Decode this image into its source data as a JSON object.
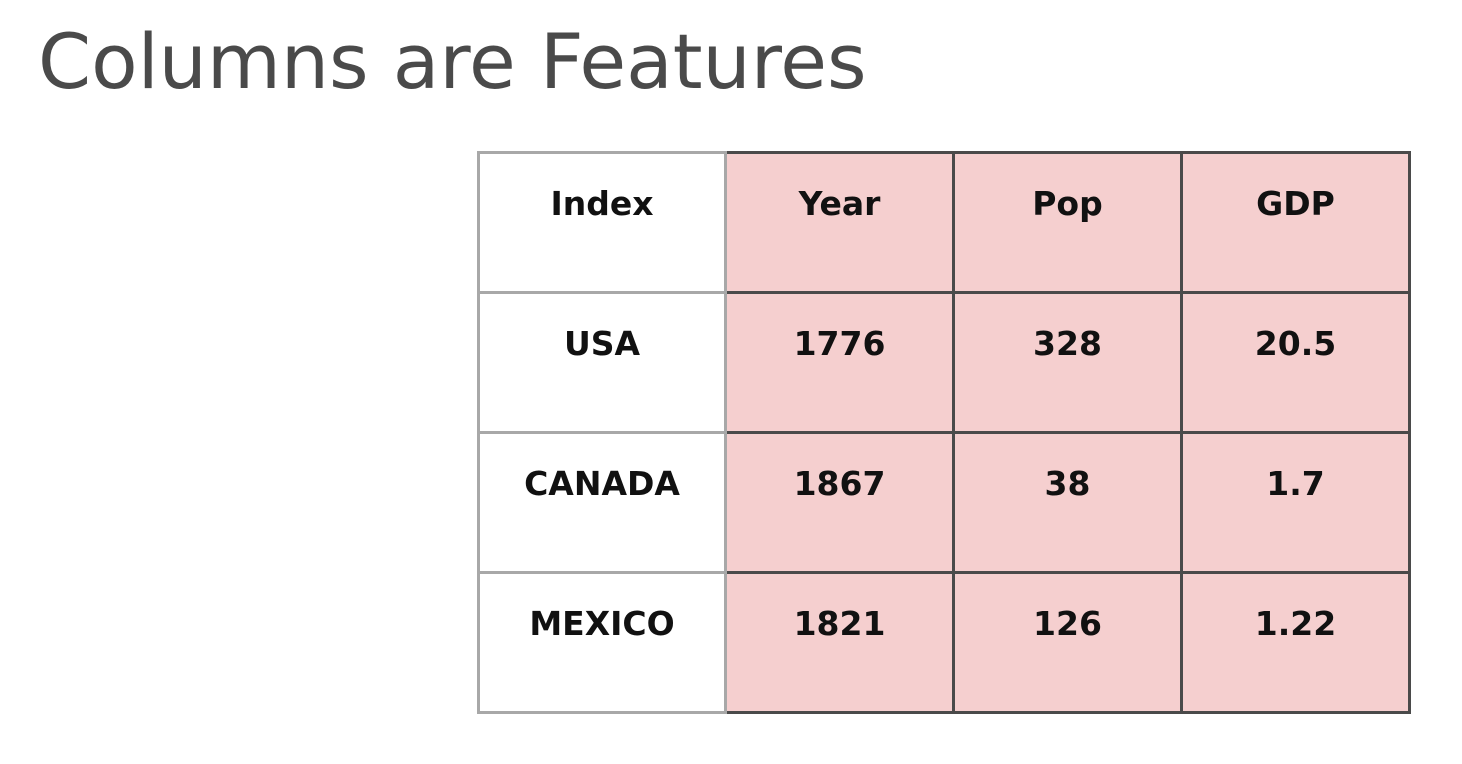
{
  "title": "Columns are Features",
  "table": {
    "headers": [
      "Index",
      "Year",
      "Pop",
      "GDP"
    ],
    "rows": [
      [
        "USA",
        "1776",
        "328",
        "20.5"
      ],
      [
        "CANADA",
        "1867",
        "38",
        "1.7"
      ],
      [
        "MEXICO",
        "1821",
        "126",
        "1.22"
      ]
    ]
  },
  "colors": {
    "title_text": "#4a4a4a",
    "feature_column_fill": "#f5cfcf",
    "feature_border": "#4a4a4a",
    "index_border": "#a8a8a8"
  }
}
